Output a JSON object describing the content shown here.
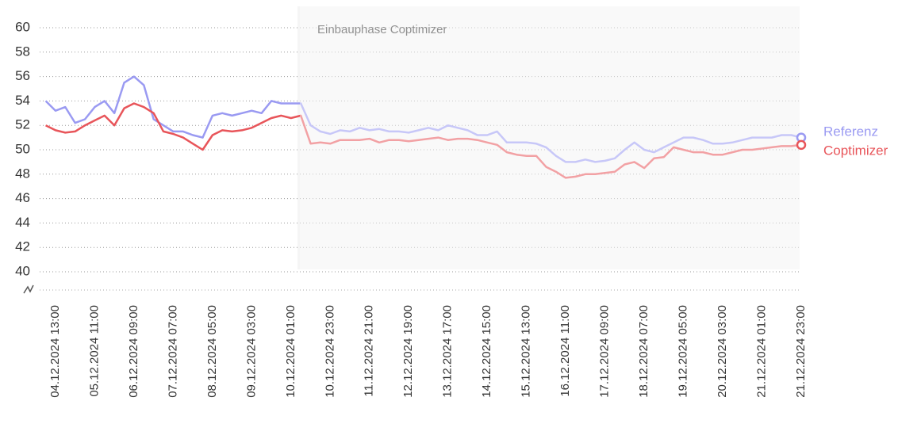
{
  "chart_data": {
    "type": "line",
    "annotation": "Einbauphase Coptimizer",
    "categories": [
      null,
      "04.12.2024 13:00",
      null,
      null,
      null,
      "05.12.2024 11:00",
      null,
      null,
      null,
      "06.12.2024 09:00",
      null,
      null,
      null,
      "07.12.2024 07:00",
      null,
      null,
      null,
      "08.12.2024 05:00",
      null,
      null,
      null,
      "09.12.2024 03:00",
      null,
      null,
      null,
      "10.12.2024 01:00",
      null,
      null,
      null,
      "10.12.2024 23:00",
      null,
      null,
      null,
      "11.12.2024 21:00",
      null,
      null,
      null,
      "12.12.2024 19:00",
      null,
      null,
      null,
      "13.12.2024 17:00",
      null,
      null,
      null,
      "14.12.2024 15:00",
      null,
      null,
      null,
      "15.12.2024 13:00",
      null,
      null,
      null,
      "16.12.2024 11:00",
      null,
      null,
      null,
      "17.12.2024 09:00",
      null,
      null,
      null,
      "18.12.2024 07:00",
      null,
      null,
      null,
      "19.12.2024 05:00",
      null,
      null,
      null,
      "20.12.2024 03:00",
      null,
      null,
      null,
      "21.12.2024 01:00",
      null,
      null,
      null,
      "21.12.2024 23:00"
    ],
    "series": [
      {
        "name": "Referenz",
        "color": "#9a9af2",
        "values": [
          54,
          53.2,
          53.5,
          52.2,
          52.5,
          53.5,
          54,
          53,
          55.5,
          56,
          55.3,
          52.5,
          52,
          51.5,
          51.5,
          51.2,
          51,
          52.8,
          53,
          52.8,
          53,
          53.2,
          53,
          54,
          53.8,
          53.8,
          53.8,
          52,
          51.5,
          51.3,
          51.6,
          51.5,
          51.8,
          51.6,
          51.7,
          51.5,
          51.5,
          51.4,
          51.6,
          51.8,
          51.6,
          52,
          51.8,
          51.6,
          51.2,
          51.2,
          51.5,
          50.6,
          50.6,
          50.6,
          50.5,
          50.2,
          49.5,
          49,
          49,
          49.2,
          49,
          49.1,
          49.3,
          50,
          50.6,
          50,
          49.8,
          50.2,
          50.6,
          51,
          51,
          50.8,
          50.5,
          50.5,
          50.6,
          50.8,
          51,
          51,
          51,
          51.2,
          51.2,
          51
        ]
      },
      {
        "name": "Coptimizer",
        "color": "#e8555a",
        "values": [
          52,
          51.6,
          51.4,
          51.5,
          52,
          52.4,
          52.8,
          52,
          53.4,
          53.8,
          53.5,
          53,
          51.5,
          51.3,
          51,
          50.5,
          50,
          51.2,
          51.6,
          51.5,
          51.6,
          51.8,
          52.2,
          52.6,
          52.8,
          52.6,
          52.8,
          50.5,
          50.6,
          50.5,
          50.8,
          50.8,
          50.8,
          50.9,
          50.6,
          50.8,
          50.8,
          50.7,
          50.8,
          50.9,
          51,
          50.8,
          50.9,
          50.9,
          50.8,
          50.6,
          50.4,
          49.8,
          49.6,
          49.5,
          49.5,
          48.6,
          48.2,
          47.7,
          47.8,
          48,
          48,
          48.1,
          48.2,
          48.8,
          49,
          48.5,
          49.3,
          49.4,
          50.2,
          50,
          49.8,
          49.8,
          49.6,
          49.6,
          49.8,
          50,
          50,
          50.1,
          50.2,
          50.3,
          50.3,
          50.4
        ]
      }
    ],
    "ylim": [
      40,
      60
    ],
    "yticks": [
      40,
      42,
      44,
      46,
      48,
      50,
      52,
      54,
      56,
      58,
      60
    ],
    "grid": true
  }
}
